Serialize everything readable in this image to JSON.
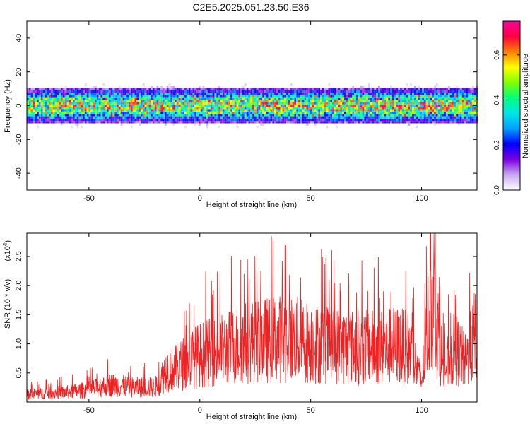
{
  "title": "C2E5.2025.051.23.50.E36",
  "chart_data": [
    {
      "type": "heatmap",
      "xlabel": "Height of straight line (km)",
      "ylabel": "Frequency (Hz)",
      "xlim": [
        -78,
        125
      ],
      "ylim": [
        -50,
        50
      ],
      "xticks": [
        -50,
        0,
        50,
        100
      ],
      "yticks": [
        -40,
        -20,
        0,
        20,
        40
      ],
      "xtick_labels": [
        "-50",
        "0",
        "50",
        "100"
      ],
      "ytick_labels": [
        "-40",
        "-20",
        "0",
        "20",
        "40"
      ],
      "band_center_hz": 0,
      "band_halfwidth_hz": 10,
      "colorbar": {
        "label": "Normalized spectral amplitude",
        "range": [
          0.0,
          0.75
        ],
        "ticks": [
          0.0,
          0.2,
          0.4,
          0.6
        ],
        "tick_labels": [
          "0.0",
          "0.2",
          "0.4",
          "0.6"
        ],
        "colormap": [
          "#ffffff",
          "#c8a8f0",
          "#7a00e0",
          "#0000ff",
          "#00a0ff",
          "#00e6e6",
          "#00ff80",
          "#80ff00",
          "#ffff00",
          "#ff8000",
          "#ff0040",
          "#ff00a0"
        ]
      }
    },
    {
      "type": "line",
      "xlabel": "Height of straight line (km)",
      "ylabel": "SNR (10 * v/v)",
      "scale_label": "(x10",
      "scale_exp": "4",
      "scale_close": ")",
      "xlim": [
        -78,
        125
      ],
      "ylim": [
        0,
        2.9
      ],
      "xticks": [
        -50,
        0,
        50,
        100
      ],
      "yticks": [
        0.5,
        1.0,
        1.5,
        2.0,
        2.5
      ],
      "xtick_labels": [
        "-50",
        "0",
        "50",
        "100"
      ],
      "ytick_labels": [
        "0.5",
        "1.0",
        "1.5",
        "2.0",
        "2.5"
      ],
      "color": "#ee2222",
      "series": [
        {
          "x": [
            -78,
            -70,
            -60,
            -50,
            -40,
            -30,
            -20,
            -15,
            -10,
            -5,
            0,
            10,
            20,
            30,
            40,
            50,
            60,
            70,
            80,
            90,
            95,
            100,
            103,
            105,
            108,
            110,
            115,
            120,
            125
          ],
          "values": [
            0.15,
            0.18,
            0.2,
            0.25,
            0.35,
            0.3,
            0.3,
            0.65,
            0.7,
            0.85,
            0.95,
            1.05,
            1.2,
            1.25,
            1.3,
            1.2,
            1.15,
            1.1,
            1.1,
            1.15,
            1.05,
            0.4,
            1.6,
            2.0,
            1.3,
            0.6,
            1.1,
            0.8,
            1.5
          ]
        }
      ]
    }
  ]
}
